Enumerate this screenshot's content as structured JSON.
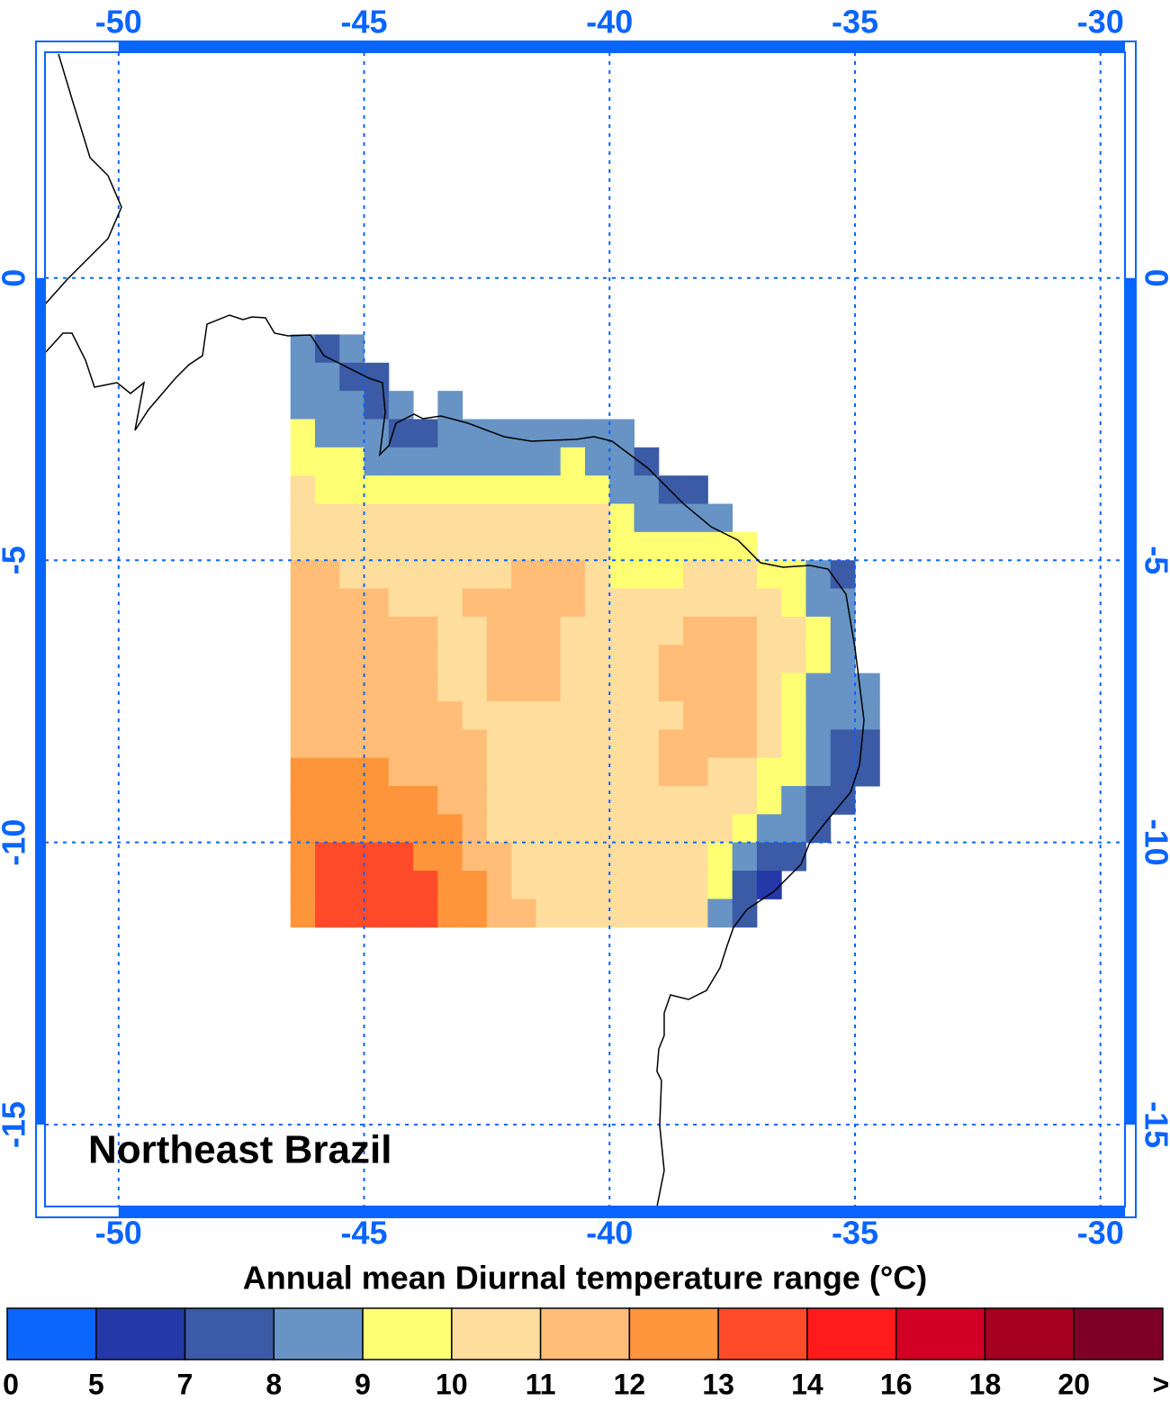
{
  "map": {
    "title": "Northeast Brazil",
    "colorbar_title": "Annual mean Diurnal temperature range (°C)",
    "lonlim": [
      -51.5,
      -29.5
    ],
    "latlim": [
      -16.45,
      4.0
    ],
    "lon_ticks": [
      -50,
      -45,
      -40,
      -35,
      -30
    ],
    "lat_ticks": [
      0,
      -5,
      -10,
      -15
    ],
    "grid": true,
    "cell_origin": [
      -46.5,
      -1
    ],
    "cell_size": 0.5,
    "cells": [
      [
        8.5,
        7.5,
        8.5,
        null,
        null,
        null,
        null,
        null,
        null,
        null,
        null,
        null,
        null,
        null,
        null,
        null,
        null,
        null,
        null,
        null,
        null,
        null,
        null,
        null
      ],
      [
        8.5,
        8.5,
        7.5,
        7.5,
        null,
        null,
        null,
        null,
        null,
        null,
        null,
        null,
        null,
        null,
        null,
        null,
        null,
        null,
        null,
        null,
        null,
        null,
        null,
        null
      ],
      [
        8.5,
        8.5,
        8.5,
        7.5,
        8.5,
        null,
        8.5,
        null,
        null,
        null,
        null,
        null,
        null,
        null,
        null,
        null,
        null,
        null,
        null,
        null,
        null,
        null,
        null,
        null
      ],
      [
        9.5,
        8.5,
        8.5,
        8.5,
        7.5,
        7.5,
        8.5,
        8.5,
        8.5,
        8.5,
        8.5,
        8.5,
        8.5,
        8.5,
        null,
        null,
        null,
        null,
        null,
        null,
        null,
        null,
        null,
        null
      ],
      [
        9.5,
        9.5,
        9.5,
        8.5,
        8.5,
        8.5,
        8.5,
        8.5,
        8.5,
        8.5,
        8.5,
        9.5,
        8.5,
        8.5,
        7.5,
        null,
        null,
        null,
        null,
        null,
        null,
        null,
        null,
        null
      ],
      [
        10.5,
        9.5,
        9.5,
        9.5,
        9.5,
        9.5,
        9.5,
        9.5,
        9.5,
        9.5,
        9.5,
        9.5,
        9.5,
        8.5,
        8.5,
        7.5,
        7.5,
        null,
        null,
        null,
        null,
        null,
        null,
        null
      ],
      [
        10.5,
        10.5,
        10.5,
        10.5,
        10.5,
        10.5,
        10.5,
        10.5,
        10.5,
        10.5,
        10.5,
        10.5,
        10.5,
        9.5,
        8.5,
        8.5,
        8.5,
        8.5,
        null,
        null,
        null,
        null,
        null,
        null
      ],
      [
        10.5,
        10.5,
        10.5,
        10.5,
        10.5,
        10.5,
        10.5,
        10.5,
        10.5,
        10.5,
        10.5,
        10.5,
        10.5,
        9.5,
        9.5,
        9.5,
        9.5,
        9.5,
        9.5,
        null,
        null,
        null,
        null,
        null
      ],
      [
        11.5,
        11.5,
        10.5,
        10.5,
        10.5,
        10.5,
        10.5,
        10.5,
        10.5,
        11.5,
        11.5,
        11.5,
        10.5,
        9.5,
        9.5,
        9.5,
        10.5,
        10.5,
        10.5,
        9.5,
        9.5,
        8.5,
        7.5,
        null
      ],
      [
        11.5,
        11.5,
        11.5,
        11.5,
        10.5,
        10.5,
        10.5,
        11.5,
        11.5,
        11.5,
        11.5,
        11.5,
        10.5,
        10.5,
        10.5,
        10.5,
        10.5,
        10.5,
        10.5,
        10.5,
        9.5,
        8.5,
        8.5,
        null
      ],
      [
        11.5,
        11.5,
        11.5,
        11.5,
        11.5,
        11.5,
        10.5,
        10.5,
        11.5,
        11.5,
        11.5,
        10.5,
        10.5,
        10.5,
        10.5,
        10.5,
        11.5,
        11.5,
        11.5,
        10.5,
        10.5,
        9.5,
        8.5,
        null
      ],
      [
        11.5,
        11.5,
        11.5,
        11.5,
        11.5,
        11.5,
        10.5,
        10.5,
        11.5,
        11.5,
        11.5,
        10.5,
        10.5,
        10.5,
        10.5,
        11.5,
        11.5,
        11.5,
        11.5,
        10.5,
        10.5,
        9.5,
        8.5,
        null
      ],
      [
        11.5,
        11.5,
        11.5,
        11.5,
        11.5,
        11.5,
        10.5,
        10.5,
        11.5,
        11.5,
        11.5,
        10.5,
        10.5,
        10.5,
        10.5,
        11.5,
        11.5,
        11.5,
        11.5,
        10.5,
        9.5,
        8.5,
        8.5,
        8.5
      ],
      [
        11.5,
        11.5,
        11.5,
        11.5,
        11.5,
        11.5,
        11.5,
        10.5,
        10.5,
        10.5,
        10.5,
        10.5,
        10.5,
        10.5,
        10.5,
        10.5,
        11.5,
        11.5,
        11.5,
        10.5,
        9.5,
        8.5,
        8.5,
        8.5
      ],
      [
        11.5,
        11.5,
        11.5,
        11.5,
        11.5,
        11.5,
        11.5,
        11.5,
        10.5,
        10.5,
        10.5,
        10.5,
        10.5,
        10.5,
        10.5,
        11.5,
        11.5,
        11.5,
        11.5,
        10.5,
        9.5,
        8.5,
        7.5,
        7.5
      ],
      [
        12.5,
        12.5,
        12.5,
        12.5,
        11.5,
        11.5,
        11.5,
        11.5,
        10.5,
        10.5,
        10.5,
        10.5,
        10.5,
        10.5,
        10.5,
        11.5,
        11.5,
        10.5,
        10.5,
        9.5,
        9.5,
        8.5,
        7.5,
        7.5
      ],
      [
        12.5,
        12.5,
        12.5,
        12.5,
        12.5,
        12.5,
        11.5,
        11.5,
        10.5,
        10.5,
        10.5,
        10.5,
        10.5,
        10.5,
        10.5,
        10.5,
        10.5,
        10.5,
        10.5,
        9.5,
        8.5,
        7.5,
        7.5,
        null
      ],
      [
        12.5,
        12.5,
        12.5,
        12.5,
        12.5,
        12.5,
        12.5,
        11.5,
        10.5,
        10.5,
        10.5,
        10.5,
        10.5,
        10.5,
        10.5,
        10.5,
        10.5,
        10.5,
        9.5,
        8.5,
        8.5,
        7.5,
        null,
        null
      ],
      [
        12.5,
        13.5,
        13.5,
        13.5,
        13.5,
        12.5,
        12.5,
        11.5,
        11.5,
        10.5,
        10.5,
        10.5,
        10.5,
        10.5,
        10.5,
        10.5,
        10.5,
        9.5,
        8.5,
        7.5,
        7.5,
        null,
        null,
        null
      ],
      [
        12.5,
        13.5,
        13.5,
        13.5,
        13.5,
        13.5,
        12.5,
        12.5,
        11.5,
        10.5,
        10.5,
        10.5,
        10.5,
        10.5,
        10.5,
        10.5,
        10.5,
        9.5,
        7.5,
        6,
        null,
        null,
        null,
        null
      ],
      [
        12.5,
        13.5,
        13.5,
        13.5,
        13.5,
        13.5,
        12.5,
        12.5,
        11.5,
        11.5,
        10.5,
        10.5,
        10.5,
        10.5,
        10.5,
        10.5,
        10.5,
        8.5,
        7.5,
        null,
        null,
        null,
        null,
        null
      ]
    ],
    "colorbar_ticks": [
      0,
      5,
      7,
      8,
      9,
      10,
      11,
      12,
      13,
      14,
      16,
      18,
      20,
      ">"
    ],
    "colorbar_colors": [
      "#0d66fb",
      "#2438a8",
      "#3c5ba6",
      "#6794c4",
      "#ffff73",
      "#ffdd9c",
      "#ffbd78",
      "#ff953a",
      "#ff4b29",
      "#ff1b1b",
      "#d10024",
      "#a60021",
      "#7f0027"
    ],
    "axis_color": "#0a64ff"
  }
}
